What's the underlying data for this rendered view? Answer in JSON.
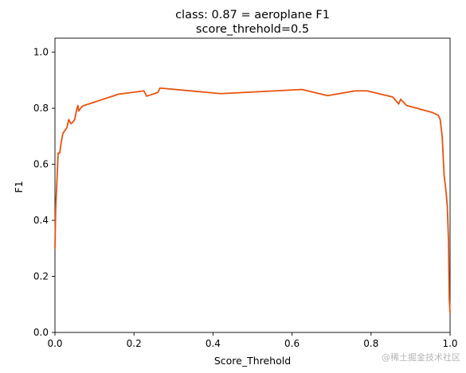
{
  "chart_data": {
    "type": "line",
    "title": "class: 0.87 = aeroplane F1",
    "subtitle": "score_threhold=0.5",
    "xlabel": "Score_Threhold",
    "ylabel": "F1",
    "xlim": [
      0,
      1
    ],
    "ylim": [
      0,
      1.05
    ],
    "xticks": [
      "0.0",
      "0.2",
      "0.4",
      "0.6",
      "0.8",
      "1.0"
    ],
    "yticks": [
      "0.0",
      "0.2",
      "0.4",
      "0.6",
      "0.8",
      "1.0"
    ],
    "grid": false,
    "legend": "none",
    "series": [
      {
        "color": "#e8520c",
        "x": [
          0.0,
          0.002,
          0.005,
          0.008,
          0.012,
          0.016,
          0.02,
          0.025,
          0.03,
          0.035,
          0.04,
          0.045,
          0.05,
          0.055,
          0.058,
          0.06,
          0.065,
          0.07,
          0.1,
          0.15,
          0.16,
          0.225,
          0.232,
          0.26,
          0.266,
          0.42,
          0.625,
          0.69,
          0.76,
          0.79,
          0.855,
          0.87,
          0.875,
          0.89,
          0.955,
          0.97,
          0.975,
          0.98,
          0.985,
          0.99,
          0.993,
          0.996,
          0.998,
          1.0
        ],
        "y": [
          0.3,
          0.45,
          0.54,
          0.64,
          0.64,
          0.68,
          0.71,
          0.72,
          0.73,
          0.76,
          0.745,
          0.75,
          0.76,
          0.795,
          0.81,
          0.79,
          0.8,
          0.808,
          0.822,
          0.845,
          0.85,
          0.862,
          0.843,
          0.856,
          0.872,
          0.852,
          0.867,
          0.845,
          0.862,
          0.862,
          0.84,
          0.815,
          0.832,
          0.81,
          0.785,
          0.775,
          0.76,
          0.7,
          0.56,
          0.5,
          0.45,
          0.33,
          0.12,
          0.07
        ]
      }
    ]
  },
  "watermark": "@稀土掘金技术社区"
}
